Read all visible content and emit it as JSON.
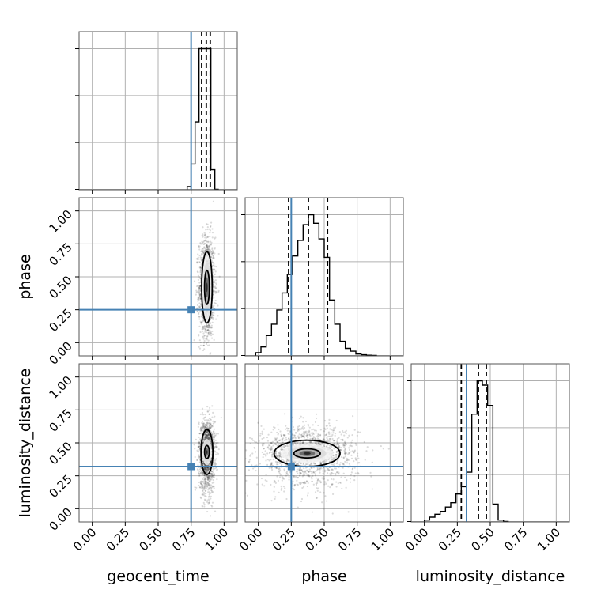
{
  "chart_data": {
    "type": "corner",
    "parameters": [
      "geocent_time",
      "phase",
      "luminosity_distance"
    ],
    "truths": [
      0.75,
      0.25,
      0.32
    ],
    "range": [
      -0.1,
      1.1
    ],
    "ticks": [
      0.0,
      0.25,
      0.5,
      0.75,
      1.0
    ],
    "tick_labels": [
      "0.00",
      "0.25",
      "0.50",
      "0.75",
      "1.00"
    ],
    "grid": true,
    "colors": {
      "truth": "#4682b4",
      "hist": "#000000",
      "grid": "#b0b0b0",
      "frame": "#555555"
    },
    "histograms": [
      {
        "parameter": "geocent_time",
        "bins": [
          0.72,
          0.75,
          0.78,
          0.81,
          0.84,
          0.87,
          0.9,
          0.93,
          0.96
        ],
        "density": [
          2,
          18,
          48,
          100,
          100,
          100,
          14,
          0
        ],
        "quantiles": [
          0.83,
          0.865,
          0.895
        ]
      },
      {
        "parameter": "phase",
        "bins": [
          -0.02,
          0.02,
          0.06,
          0.1,
          0.14,
          0.18,
          0.22,
          0.26,
          0.3,
          0.34,
          0.38,
          0.42,
          0.46,
          0.5,
          0.54,
          0.58,
          0.62,
          0.66,
          0.7,
          0.74,
          0.78,
          0.82,
          0.86,
          0.9
        ],
        "density": [
          2,
          6,
          14,
          22,
          32,
          44,
          57,
          70,
          81,
          92,
          99,
          93,
          82,
          69,
          39,
          22,
          10,
          5,
          3,
          1,
          0.5,
          0.2,
          0
        ],
        "quantiles": [
          0.23,
          0.38,
          0.525
        ]
      },
      {
        "parameter": "luminosity_distance",
        "bins": [
          0.0,
          0.04,
          0.08,
          0.12,
          0.16,
          0.2,
          0.24,
          0.28,
          0.32,
          0.36,
          0.4,
          0.44,
          0.48,
          0.52,
          0.56,
          0.6,
          0.64
        ],
        "density": [
          1,
          3,
          5,
          7,
          10,
          13,
          19,
          24,
          34,
          74,
          97,
          94,
          80,
          12,
          1,
          0
        ],
        "quantiles": [
          0.28,
          0.41,
          0.47
        ]
      }
    ],
    "panels_2d": [
      {
        "x": "geocent_time",
        "y": "phase",
        "center": [
          0.87,
          0.42
        ],
        "spread": [
          0.03,
          0.19
        ],
        "contours": [
          {
            "rx": 0.018,
            "ry": 0.13
          },
          {
            "rx": 0.04,
            "ry": 0.27
          }
        ]
      },
      {
        "x": "geocent_time",
        "y": "luminosity_distance",
        "center": [
          0.87,
          0.43
        ],
        "spread": [
          0.03,
          0.12
        ],
        "contours": [
          {
            "rx": 0.018,
            "ry": 0.05
          },
          {
            "rx": 0.045,
            "ry": 0.17
          }
        ]
      },
      {
        "x": "phase",
        "y": "luminosity_distance",
        "center": [
          0.37,
          0.42
        ],
        "spread": [
          0.19,
          0.1
        ],
        "contours": [
          {
            "rx": 0.1,
            "ry": 0.035
          },
          {
            "rx": 0.25,
            "ry": 0.1
          }
        ]
      }
    ]
  }
}
